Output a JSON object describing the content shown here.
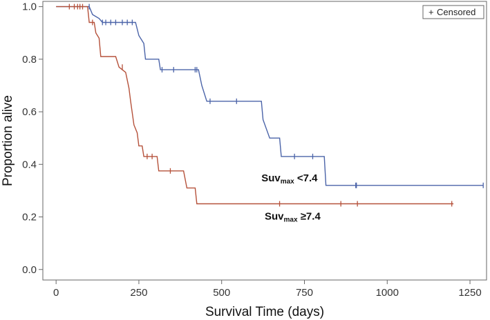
{
  "chart_data": {
    "type": "line",
    "subtype": "kaplan-meier",
    "xlabel": "Survival Time (days)",
    "ylabel": "Proportion alive",
    "xlim": [
      -40,
      1300
    ],
    "ylim": [
      -0.04,
      1.02
    ],
    "xticks": [
      0,
      250,
      500,
      750,
      1000,
      1250
    ],
    "yticks": [
      0.0,
      0.2,
      0.4,
      0.6,
      0.8,
      1.0
    ],
    "ytick_labels": [
      "0.0",
      "0.2",
      "0.4",
      "0.6",
      "0.8",
      "1.0"
    ],
    "legend": {
      "position": "top-right",
      "symbol": "+",
      "label": "Censored"
    },
    "series": [
      {
        "name": "SUVmax <7.4",
        "color": "#4a63a8",
        "label_main": "Suv",
        "label_sub": "max",
        "label_rest": " <7.4",
        "label_at": [
          620,
          0.335
        ],
        "steps": [
          [
            0,
            1.0
          ],
          [
            100,
            1.0
          ],
          [
            110,
            0.97
          ],
          [
            130,
            0.955
          ],
          [
            140,
            0.94
          ],
          [
            240,
            0.94
          ],
          [
            250,
            0.89
          ],
          [
            265,
            0.86
          ],
          [
            270,
            0.8
          ],
          [
            310,
            0.8
          ],
          [
            315,
            0.76
          ],
          [
            430,
            0.76
          ],
          [
            440,
            0.7
          ],
          [
            455,
            0.64
          ],
          [
            620,
            0.64
          ],
          [
            625,
            0.57
          ],
          [
            645,
            0.5
          ],
          [
            675,
            0.5
          ],
          [
            680,
            0.43
          ],
          [
            810,
            0.43
          ],
          [
            815,
            0.32
          ],
          [
            1290,
            0.32
          ]
        ],
        "censored": [
          [
            100,
            1.0
          ],
          [
            140,
            0.94
          ],
          [
            150,
            0.94
          ],
          [
            165,
            0.94
          ],
          [
            180,
            0.94
          ],
          [
            200,
            0.94
          ],
          [
            215,
            0.94
          ],
          [
            230,
            0.94
          ],
          [
            320,
            0.76
          ],
          [
            355,
            0.76
          ],
          [
            420,
            0.76
          ],
          [
            425,
            0.76
          ],
          [
            465,
            0.64
          ],
          [
            545,
            0.64
          ],
          [
            720,
            0.43
          ],
          [
            775,
            0.43
          ],
          [
            905,
            0.32
          ],
          [
            907,
            0.32
          ],
          [
            1290,
            0.32
          ]
        ]
      },
      {
        "name": "SUVmax ≥7.4",
        "color": "#b5513a",
        "label_main": "Suv",
        "label_sub": "max",
        "label_rest": " ≥7.4",
        "label_at": [
          630,
          0.19
        ],
        "steps": [
          [
            0,
            1.0
          ],
          [
            95,
            1.0
          ],
          [
            100,
            0.94
          ],
          [
            115,
            0.94
          ],
          [
            120,
            0.9
          ],
          [
            130,
            0.88
          ],
          [
            135,
            0.81
          ],
          [
            180,
            0.81
          ],
          [
            190,
            0.77
          ],
          [
            210,
            0.75
          ],
          [
            215,
            0.72
          ],
          [
            220,
            0.69
          ],
          [
            225,
            0.64
          ],
          [
            235,
            0.55
          ],
          [
            245,
            0.52
          ],
          [
            250,
            0.47
          ],
          [
            260,
            0.47
          ],
          [
            265,
            0.43
          ],
          [
            305,
            0.43
          ],
          [
            310,
            0.375
          ],
          [
            385,
            0.375
          ],
          [
            395,
            0.31
          ],
          [
            420,
            0.31
          ],
          [
            425,
            0.25
          ],
          [
            1200,
            0.25
          ]
        ],
        "censored": [
          [
            40,
            1.0
          ],
          [
            55,
            1.0
          ],
          [
            65,
            1.0
          ],
          [
            72,
            1.0
          ],
          [
            80,
            1.0
          ],
          [
            110,
            0.94
          ],
          [
            200,
            0.77
          ],
          [
            275,
            0.43
          ],
          [
            290,
            0.43
          ],
          [
            345,
            0.375
          ],
          [
            675,
            0.25
          ],
          [
            860,
            0.25
          ],
          [
            910,
            0.25
          ],
          [
            1195,
            0.25
          ]
        ]
      }
    ]
  }
}
